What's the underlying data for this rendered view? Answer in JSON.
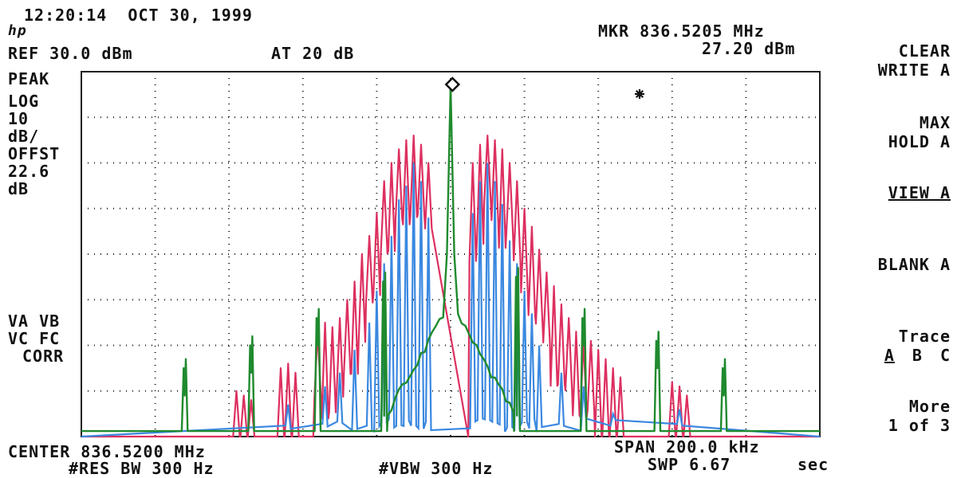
{
  "header": {
    "datetime": "12:20:14  OCT 30, 1999",
    "ref_level": "REF 30.0 dBm",
    "attenuation": "AT 20 dB",
    "marker_freq": "MKR 836.5205 MHz",
    "marker_level": "27.20 dBm"
  },
  "left_panel": {
    "mode": "PEAK",
    "scale_lines": [
      "LOG",
      "10",
      "dB/",
      "OFFST",
      "22.6",
      "dB"
    ],
    "flags": [
      "VA VB",
      "VC FC",
      "CORR"
    ]
  },
  "footer": {
    "center": "CENTER 836.5200 MHz",
    "res_bw": "#RES BW 300 Hz",
    "vbw": "#VBW 300 Hz",
    "span": "SPAN 200.0 kHz",
    "sweep": "SWP 6.67",
    "sweep_unit": "sec"
  },
  "softkeys": {
    "clear_write": [
      "CLEAR",
      "WRITE A"
    ],
    "max_hold": [
      "MAX",
      "HOLD A"
    ],
    "view": "VIEW A",
    "blank": "BLANK A",
    "trace_title": "Trace",
    "trace_options": [
      "A",
      "B",
      "C"
    ],
    "more": [
      "More",
      "1 of 3"
    ]
  },
  "colors": {
    "trace_a_red": "#dd3060",
    "trace_b_blue": "#3a88e0",
    "trace_c_green": "#1f8a2e",
    "grid": "#222222"
  },
  "chart_data": {
    "type": "line",
    "center_mhz": 836.52,
    "span_khz": 200.0,
    "ref_dbm": 30.0,
    "db_per_div": 10,
    "xlim_khz": [
      -100,
      100
    ],
    "ylim_dbm": [
      -50,
      30
    ],
    "marker": {
      "freq_mhz": 836.5205,
      "level_dbm": 27.2
    },
    "grid": true,
    "series": [
      {
        "id": "red",
        "peaks": [
          {
            "f": -58,
            "l": -40
          },
          {
            "f": -56,
            "l": -41
          },
          {
            "f": -54,
            "l": -42
          },
          {
            "f": -46,
            "l": -35
          },
          {
            "f": -44,
            "l": -34
          },
          {
            "f": -42,
            "l": -36
          },
          {
            "f": -36,
            "l": -27
          },
          {
            "f": -34,
            "l": -25
          },
          {
            "f": -32,
            "l": -26
          },
          {
            "f": -30,
            "l": -24
          },
          {
            "f": -28,
            "l": -20
          },
          {
            "f": -26,
            "l": -16
          },
          {
            "f": -24,
            "l": -10
          },
          {
            "f": -22,
            "l": -6
          },
          {
            "f": -20,
            "l": -1
          },
          {
            "f": -18,
            "l": 6
          },
          {
            "f": -16,
            "l": 10
          },
          {
            "f": -14,
            "l": 13
          },
          {
            "f": -12,
            "l": 15
          },
          {
            "f": -10,
            "l": 16
          },
          {
            "f": -8,
            "l": 14
          },
          {
            "f": -6,
            "l": 10
          },
          {
            "f": 6,
            "l": 10
          },
          {
            "f": 8,
            "l": 14
          },
          {
            "f": 10,
            "l": 16
          },
          {
            "f": 12,
            "l": 15
          },
          {
            "f": 14,
            "l": 13
          },
          {
            "f": 16,
            "l": 10
          },
          {
            "f": 18,
            "l": 6
          },
          {
            "f": 20,
            "l": 0
          },
          {
            "f": 22,
            "l": -4
          },
          {
            "f": 24,
            "l": -9
          },
          {
            "f": 26,
            "l": -14
          },
          {
            "f": 28,
            "l": -17
          },
          {
            "f": 30,
            "l": -21
          },
          {
            "f": 32,
            "l": -24
          },
          {
            "f": 34,
            "l": -27
          },
          {
            "f": 36,
            "l": -29
          },
          {
            "f": 38,
            "l": -29
          },
          {
            "f": 40,
            "l": -31
          },
          {
            "f": 42,
            "l": -33
          },
          {
            "f": 44,
            "l": -35
          },
          {
            "f": 46,
            "l": -37
          },
          {
            "f": 60,
            "l": -38
          },
          {
            "f": 62,
            "l": -39
          },
          {
            "f": 64,
            "l": -41
          }
        ]
      },
      {
        "id": "blue",
        "peaks": [
          {
            "f": -44,
            "l": -43
          },
          {
            "f": -34,
            "l": -39
          },
          {
            "f": -30,
            "l": -36
          },
          {
            "f": -26,
            "l": -31
          },
          {
            "f": -22,
            "l": -25
          },
          {
            "f": -20,
            "l": -18
          },
          {
            "f": -18,
            "l": -12
          },
          {
            "f": -16,
            "l": -6
          },
          {
            "f": -14,
            "l": 2
          },
          {
            "f": -12,
            "l": 5
          },
          {
            "f": -10,
            "l": 10
          },
          {
            "f": -8,
            "l": 6
          },
          {
            "f": -6,
            "l": -2
          },
          {
            "f": 6,
            "l": -1
          },
          {
            "f": 8,
            "l": 6
          },
          {
            "f": 10,
            "l": 10
          },
          {
            "f": 12,
            "l": 6
          },
          {
            "f": 14,
            "l": 1
          },
          {
            "f": 16,
            "l": -7
          },
          {
            "f": 18,
            "l": -12
          },
          {
            "f": 20,
            "l": -18
          },
          {
            "f": 22,
            "l": -23
          },
          {
            "f": 24,
            "l": -30
          },
          {
            "f": 30,
            "l": -36
          },
          {
            "f": 36,
            "l": -39
          },
          {
            "f": 44,
            "l": -45
          },
          {
            "f": 62,
            "l": -44
          }
        ]
      },
      {
        "id": "green",
        "peaks": [
          {
            "f": -72,
            "l": -41
          },
          {
            "f": -54,
            "l": -36
          },
          {
            "f": -36,
            "l": -30
          },
          {
            "f": -18,
            "l": -22
          },
          {
            "f": 0,
            "l": 27.2
          },
          {
            "f": 18,
            "l": -21
          },
          {
            "f": 36,
            "l": -30
          },
          {
            "f": 56,
            "l": -35
          },
          {
            "f": 74,
            "l": -41
          }
        ]
      }
    ]
  }
}
